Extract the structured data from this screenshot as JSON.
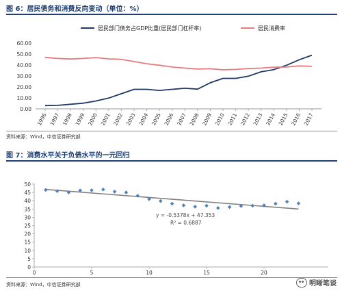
{
  "figure1": {
    "title": "图 6：居民债务和消费反向变动（单位：%）",
    "source": "资料来源：Wind，中信证券研究部"
  },
  "figure2": {
    "title": "图 7：消费水平关于负债水平的一元回归",
    "source": "资料来源：Wind，中信证券研究部"
  },
  "watermark": {
    "text": "明晰笔谈"
  },
  "chart_data": [
    {
      "type": "line",
      "title": "",
      "xlabel": "",
      "ylabel": "",
      "x": [
        "1996",
        "1997",
        "1998",
        "1999",
        "2000",
        "2001",
        "2002",
        "2003",
        "2004",
        "2005",
        "2006",
        "2007",
        "2008",
        "2009",
        "2010",
        "2011",
        "2012",
        "2013",
        "2014",
        "2015",
        "2016",
        "2017"
      ],
      "ylim": [
        0,
        60
      ],
      "yticks": [
        "0.00",
        "10.00",
        "20.00",
        "30.00",
        "40.00",
        "50.00",
        "60.00"
      ],
      "grid": false,
      "legend": "top",
      "series": [
        {
          "name": "居民部门债务占GDP比重(居民部门杠杆率)",
          "color": "#1f3864",
          "values": [
            3.0,
            3.2,
            4.2,
            5.2,
            7.2,
            9.8,
            13.8,
            17.8,
            17.8,
            16.8,
            17.8,
            18.8,
            18.0,
            23.8,
            27.8,
            27.8,
            29.8,
            33.8,
            35.8,
            39.8,
            44.8,
            49.0
          ]
        },
        {
          "name": "居民消费率",
          "color": "#e8797f",
          "values": [
            47.0,
            46.0,
            45.5,
            46.0,
            46.8,
            45.6,
            45.2,
            43.2,
            41.2,
            39.8,
            38.2,
            37.2,
            36.4,
            36.6,
            35.6,
            36.0,
            36.8,
            37.2,
            38.0,
            38.2,
            39.2,
            38.8
          ]
        }
      ]
    },
    {
      "type": "scatter",
      "title": "",
      "xlabel": "",
      "ylabel": "",
      "xlim": [
        0,
        22
      ],
      "ylim": [
        0,
        50
      ],
      "xticks": [
        0,
        5,
        10,
        15,
        20
      ],
      "yticks": [
        0,
        5,
        10,
        15,
        20,
        25,
        30,
        35,
        40,
        45,
        50
      ],
      "grid": false,
      "legend": "none",
      "marker_color": "#4f81bd",
      "points": [
        {
          "x": 1,
          "y": 46.5
        },
        {
          "x": 2,
          "y": 45.8
        },
        {
          "x": 3,
          "y": 45.0
        },
        {
          "x": 4,
          "y": 46.2
        },
        {
          "x": 5,
          "y": 46.3
        },
        {
          "x": 6,
          "y": 46.8
        },
        {
          "x": 7,
          "y": 45.5
        },
        {
          "x": 8,
          "y": 45.0
        },
        {
          "x": 9,
          "y": 43.0
        },
        {
          "x": 10,
          "y": 41.0
        },
        {
          "x": 11,
          "y": 39.8
        },
        {
          "x": 12,
          "y": 38.2
        },
        {
          "x": 13,
          "y": 37.2
        },
        {
          "x": 14,
          "y": 36.4
        },
        {
          "x": 15,
          "y": 37.0
        },
        {
          "x": 16,
          "y": 35.6
        },
        {
          "x": 17,
          "y": 36.2
        },
        {
          "x": 18,
          "y": 36.8
        },
        {
          "x": 19,
          "y": 37.0
        },
        {
          "x": 20,
          "y": 37.2
        },
        {
          "x": 21,
          "y": 38.2
        },
        {
          "x": 22,
          "y": 39.4
        },
        {
          "x": 23,
          "y": 38.4
        }
      ],
      "trendline": {
        "slope": -0.5378,
        "intercept": 47.353,
        "x_range": [
          1,
          23
        ],
        "color": "#7f7f7f",
        "equation_text": "y = -0.5378x + 47.353",
        "r2_text": "R² = 0.6887"
      }
    }
  ]
}
